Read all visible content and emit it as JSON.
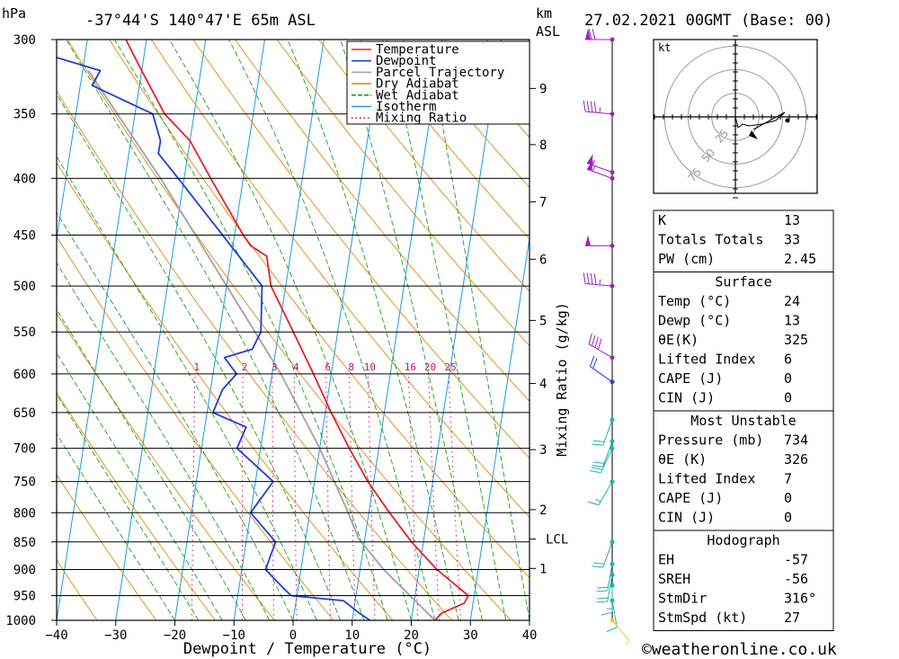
{
  "header": {
    "pressure_unit": "hPa",
    "location": "-37°44'S  140°47'E  65m  ASL",
    "height_unit": "km",
    "height_unit2": "ASL",
    "datetime": "27.02.2021  00GMT  (Base: 00)"
  },
  "footer": {
    "copyright": "©weatheronline.co.uk"
  },
  "colors": {
    "temperature": "#e8202a",
    "dewpoint": "#1f3fd6",
    "parcel": "#a8a8a8",
    "dry_adiabat": "#e08a10",
    "wet_adiabat": "#1aa01a",
    "isotherm": "#1a9ce0",
    "mixing_ratio": "#cc1177",
    "wind_upper": "#a020c0",
    "wind_lower": "#20b0b0"
  },
  "chart_data": {
    "type": "skew-t",
    "xlabel": "Dewpoint / Temperature (°C)",
    "ylabel_right": "Mixing Ratio (g/kg)",
    "x_ticks": [
      -40,
      -30,
      -20,
      -10,
      0,
      10,
      20,
      30,
      40
    ],
    "x_tick_labels": [
      "−40",
      "−30",
      "−20",
      "−10",
      "0",
      "10",
      "20",
      "30",
      "40"
    ],
    "pressure_levels": [
      300,
      350,
      400,
      450,
      500,
      550,
      600,
      650,
      700,
      750,
      800,
      850,
      900,
      950,
      1000
    ],
    "pressure_labels": [
      "300",
      "350",
      "400",
      "450",
      "500",
      "550",
      "600",
      "650",
      "700",
      "750",
      "800",
      "850",
      "900",
      "950",
      "1000"
    ],
    "height_ticks": [
      {
        "label": "9",
        "p": 332
      },
      {
        "label": "8",
        "p": 373
      },
      {
        "label": "7",
        "p": 420
      },
      {
        "label": "6",
        "p": 473
      },
      {
        "label": "5",
        "p": 537
      },
      {
        "label": "4",
        "p": 612
      },
      {
        "label": "3",
        "p": 702
      },
      {
        "label": "2",
        "p": 795
      },
      {
        "label": "LCL",
        "p": 845
      },
      {
        "label": "1",
        "p": 898
      }
    ],
    "mixing_ratio_values": [
      1,
      2,
      3,
      4,
      6,
      8,
      10,
      16,
      20,
      25
    ],
    "mixing_ratio_labels": [
      "1",
      "2",
      "3",
      "4",
      "6",
      "8",
      "10",
      "16",
      "20",
      "25"
    ],
    "legend": [
      "Temperature",
      "Dewpoint",
      "Parcel Trajectory",
      "Dry Adiabat",
      "Wet Adiabat",
      "Isotherm",
      "Mixing Ratio"
    ],
    "temperature": [
      {
        "p": 1000,
        "t": 24
      },
      {
        "p": 985,
        "t": 25
      },
      {
        "p": 965,
        "t": 28.5
      },
      {
        "p": 950,
        "t": 29
      },
      {
        "p": 900,
        "t": 23
      },
      {
        "p": 850,
        "t": 18
      },
      {
        "p": 800,
        "t": 13.5
      },
      {
        "p": 750,
        "t": 9
      },
      {
        "p": 700,
        "t": 5
      },
      {
        "p": 650,
        "t": 1
      },
      {
        "p": 600,
        "t": -3
      },
      {
        "p": 550,
        "t": -7.5
      },
      {
        "p": 500,
        "t": -12.5
      },
      {
        "p": 470,
        "t": -14
      },
      {
        "p": 460,
        "t": -17
      },
      {
        "p": 450,
        "t": -18.5
      },
      {
        "p": 400,
        "t": -25.5
      },
      {
        "p": 370,
        "t": -30
      },
      {
        "p": 350,
        "t": -35
      },
      {
        "p": 320,
        "t": -40
      },
      {
        "p": 300,
        "t": -43.5
      }
    ],
    "dewpoint": [
      {
        "p": 1000,
        "t": 13
      },
      {
        "p": 985,
        "t": 11
      },
      {
        "p": 960,
        "t": 8
      },
      {
        "p": 950,
        "t": -1
      },
      {
        "p": 930,
        "t": -3
      },
      {
        "p": 900,
        "t": -6
      },
      {
        "p": 850,
        "t": -5
      },
      {
        "p": 800,
        "t": -10
      },
      {
        "p": 750,
        "t": -7
      },
      {
        "p": 700,
        "t": -14
      },
      {
        "p": 670,
        "t": -13
      },
      {
        "p": 650,
        "t": -19
      },
      {
        "p": 620,
        "t": -18
      },
      {
        "p": 600,
        "t": -16
      },
      {
        "p": 580,
        "t": -18.5
      },
      {
        "p": 570,
        "t": -14
      },
      {
        "p": 550,
        "t": -13
      },
      {
        "p": 500,
        "t": -14
      },
      {
        "p": 450,
        "t": -22
      },
      {
        "p": 400,
        "t": -31
      },
      {
        "p": 380,
        "t": -35
      },
      {
        "p": 370,
        "t": -35
      },
      {
        "p": 350,
        "t": -37
      },
      {
        "p": 330,
        "t": -48
      },
      {
        "p": 320,
        "t": -47
      },
      {
        "p": 310,
        "t": -56
      },
      {
        "p": 300,
        "t": -56
      }
    ],
    "parcel": [
      {
        "p": 1000,
        "t": 24
      },
      {
        "p": 900,
        "t": 14
      },
      {
        "p": 845,
        "t": 9
      },
      {
        "p": 800,
        "t": 6.5
      },
      {
        "p": 700,
        "t": 0
      },
      {
        "p": 600,
        "t": -8.5
      },
      {
        "p": 500,
        "t": -20
      },
      {
        "p": 400,
        "t": -34
      },
      {
        "p": 350,
        "t": -43
      },
      {
        "p": 320,
        "t": -49
      }
    ],
    "wind_barbs": [
      {
        "p": 300,
        "dir": 270,
        "kt": 70,
        "kind": "upper"
      },
      {
        "p": 350,
        "dir": 275,
        "kt": 45,
        "kind": "upper"
      },
      {
        "p": 395,
        "dir": 290,
        "kt": 55,
        "kind": "upper"
      },
      {
        "p": 400,
        "dir": 290,
        "kt": 55,
        "kind": "upper"
      },
      {
        "p": 460,
        "dir": 270,
        "kt": 50,
        "kind": "upper"
      },
      {
        "p": 500,
        "dir": 275,
        "kt": 45,
        "kind": "upper"
      },
      {
        "p": 580,
        "dir": 300,
        "kt": 40,
        "kind": "upper"
      },
      {
        "p": 610,
        "dir": 305,
        "kt": 20,
        "kind": "blue"
      },
      {
        "p": 660,
        "dir": 200,
        "kt": 20,
        "kind": "lower"
      },
      {
        "p": 690,
        "dir": 200,
        "kt": 20,
        "kind": "lower"
      },
      {
        "p": 700,
        "dir": 205,
        "kt": 20,
        "kind": "lower"
      },
      {
        "p": 750,
        "dir": 210,
        "kt": 15,
        "kind": "lower"
      },
      {
        "p": 850,
        "dir": 200,
        "kt": 20,
        "kind": "lower"
      },
      {
        "p": 890,
        "dir": 190,
        "kt": 20,
        "kind": "lower"
      },
      {
        "p": 910,
        "dir": 190,
        "kt": 20,
        "kind": "lower"
      },
      {
        "p": 930,
        "dir": 180,
        "kt": 15,
        "kind": "lower"
      },
      {
        "p": 960,
        "dir": 170,
        "kt": 10,
        "kind": "lower"
      },
      {
        "p": 1000,
        "dir": 140,
        "kt": 5,
        "kind": "yellow"
      }
    ],
    "hodograph": {
      "unit": "kt",
      "ring_labels": [
        "25",
        "50",
        "75"
      ],
      "points": [
        [
          0,
          0
        ],
        [
          3,
          -12
        ],
        [
          8,
          -8
        ],
        [
          15,
          -10
        ],
        [
          30,
          -8
        ],
        [
          45,
          -4
        ],
        [
          55,
          5
        ],
        [
          20,
          -14
        ]
      ]
    }
  },
  "indices": {
    "general": [
      {
        "label": "K",
        "value": "13"
      },
      {
        "label": "Totals Totals",
        "value": "33"
      },
      {
        "label": "PW (cm)",
        "value": "2.45"
      }
    ],
    "surface": {
      "title": "Surface",
      "rows": [
        {
          "label": "Temp (°C)",
          "value": "24"
        },
        {
          "label": "Dewp (°C)",
          "value": "13"
        },
        {
          "label": "θE(K)",
          "value": "325"
        },
        {
          "label": "Lifted Index",
          "value": "6"
        },
        {
          "label": "CAPE (J)",
          "value": "0"
        },
        {
          "label": "CIN (J)",
          "value": "0"
        }
      ]
    },
    "most_unstable": {
      "title": "Most Unstable",
      "rows": [
        {
          "label": "Pressure (mb)",
          "value": "734"
        },
        {
          "label": "θE (K)",
          "value": "326"
        },
        {
          "label": "Lifted Index",
          "value": "7"
        },
        {
          "label": "CAPE (J)",
          "value": "0"
        },
        {
          "label": "CIN (J)",
          "value": "0"
        }
      ]
    },
    "hodograph": {
      "title": "Hodograph",
      "rows": [
        {
          "label": "EH",
          "value": "-57"
        },
        {
          "label": "SREH",
          "value": "-56"
        },
        {
          "label": "StmDir",
          "value": "316°"
        },
        {
          "label": "StmSpd (kt)",
          "value": "27"
        }
      ]
    }
  }
}
